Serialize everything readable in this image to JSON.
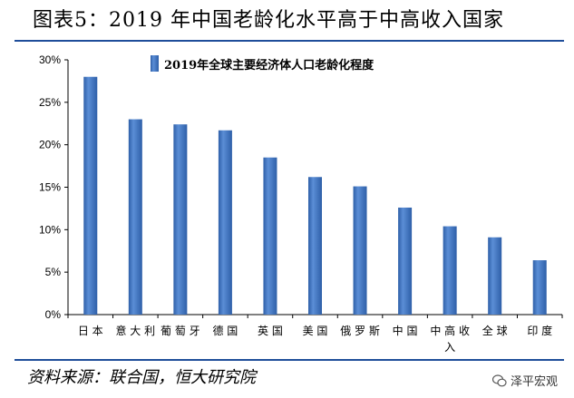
{
  "title": "图表5：2019 年中国老龄化水平高于中高收入国家",
  "source": "资料来源：联合国，恒大研究院",
  "watermark": {
    "text": "泽平宏观",
    "icon": "wechat-icon"
  },
  "colors": {
    "bar": "#5b8ed6",
    "bar_dark": "#2e5fa8",
    "rule": "#1f4e9a"
  },
  "chart_data": {
    "type": "bar",
    "categories": [
      "日本",
      "意大利",
      "葡萄牙",
      "德国",
      "英国",
      "美国",
      "俄罗斯",
      "中国",
      "中高收入",
      "全球",
      "印度"
    ],
    "series": [
      {
        "name": "2019年全球主要经济体人口老龄化程度",
        "values": [
          28.0,
          23.0,
          22.4,
          21.7,
          18.5,
          16.2,
          15.1,
          12.6,
          10.4,
          9.1,
          6.4
        ]
      }
    ],
    "yticks": [
      "0%",
      "5%",
      "10%",
      "15%",
      "20%",
      "25%",
      "30%"
    ],
    "ylim": [
      0,
      30
    ],
    "legend": "top-left",
    "grid": false
  }
}
